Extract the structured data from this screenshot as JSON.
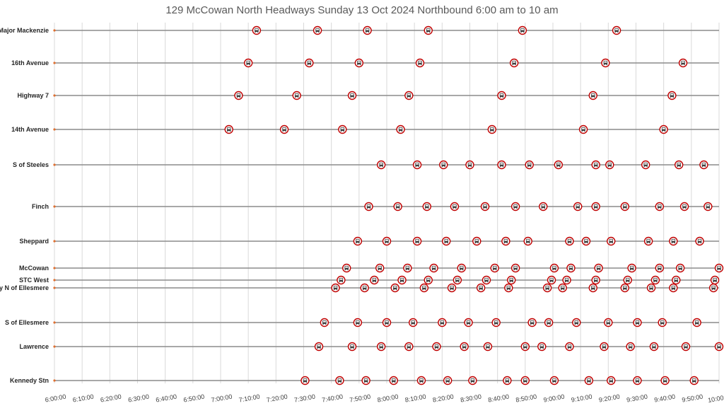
{
  "chart_data": {
    "type": "scatter",
    "title": "129 McCowan North Headways Sunday 13 Oct 2024 Northbound 6:00 am to 10 am",
    "x_range": [
      "6:00:00",
      "10:00:00"
    ],
    "x_ticks": [
      "6:00:00",
      "6:10:00",
      "6:20:00",
      "6:30:00",
      "6:40:00",
      "6:50:00",
      "7:00:00",
      "7:10:00",
      "7:20:00",
      "7:30:00",
      "7:40:00",
      "7:50:00",
      "8:00:00",
      "8:10:00",
      "8:20:00",
      "8:30:00",
      "8:40:00",
      "8:50:00",
      "9:00:00",
      "9:10:00",
      "9:20:00",
      "9:30:00",
      "9:40:00",
      "9:50:00",
      "10:00:00"
    ],
    "grid": "vertical",
    "colors": {
      "marker": "#c00000",
      "line": "#8c8c8c",
      "grid": "#d9d9d9",
      "title": "#595959",
      "stop_dot": "#e07030"
    },
    "marker_icon": "bus-icon",
    "stops": [
      {
        "name": "S of Major Mackenzie",
        "times": [
          "7:13:00",
          "7:35:00",
          "7:53:00",
          "8:15:00",
          "8:49:00",
          "9:23:00"
        ]
      },
      {
        "name": "16th Avenue",
        "times": [
          "7:10:00",
          "7:32:00",
          "7:50:00",
          "8:12:00",
          "8:46:00",
          "9:19:00",
          "9:47:00"
        ]
      },
      {
        "name": "Highway 7",
        "times": [
          "7:06:30",
          "7:27:30",
          "7:47:30",
          "8:08:00",
          "8:41:30",
          "9:14:30",
          "9:43:00"
        ]
      },
      {
        "name": "14th Avenue",
        "times": [
          "7:03:00",
          "7:23:00",
          "7:44:00",
          "8:05:00",
          "8:38:00",
          "9:11:00",
          "9:40:00"
        ]
      },
      {
        "name": "S of Steeles",
        "times": [
          "7:58:00",
          "8:11:00",
          "8:20:30",
          "8:30:00",
          "8:41:30",
          "8:51:30",
          "9:02:00",
          "9:15:30",
          "9:20:30",
          "9:33:30",
          "9:45:30",
          "9:54:30"
        ]
      },
      {
        "name": "Finch",
        "times": [
          "7:53:30",
          "8:04:00",
          "8:14:30",
          "8:24:30",
          "8:35:30",
          "8:46:30",
          "8:56:30",
          "9:09:00",
          "9:15:30",
          "9:26:00",
          "9:38:30",
          "9:47:30",
          "9:56:00"
        ]
      },
      {
        "name": "Sheppard",
        "times": [
          "7:49:30",
          "8:00:00",
          "8:11:00",
          "8:21:30",
          "8:32:30",
          "8:43:00",
          "8:51:00",
          "9:06:00",
          "9:12:00",
          "9:21:00",
          "9:34:30",
          "9:43:30",
          "9:53:00"
        ]
      },
      {
        "name": "McCowan",
        "times": [
          "7:45:30",
          "7:57:30",
          "8:07:30",
          "8:17:00",
          "8:27:00",
          "8:39:00",
          "8:46:30",
          "9:00:30",
          "9:06:30",
          "9:16:30",
          "9:28:30",
          "9:38:30",
          "9:46:00",
          "10:00:00"
        ]
      },
      {
        "name": "STC West",
        "times": [
          "7:43:30",
          "7:55:30",
          "8:05:30",
          "8:15:00",
          "8:25:30",
          "8:36:00",
          "8:45:00",
          "8:59:30",
          "9:05:00",
          "9:15:30",
          "9:27:00",
          "9:37:00",
          "9:44:30",
          "9:58:30"
        ]
      },
      {
        "name": "Brimley N of Ellesmere",
        "times": [
          "7:41:30",
          "7:52:00",
          "8:03:00",
          "8:13:30",
          "8:23:30",
          "8:34:00",
          "8:44:00",
          "8:58:00",
          "9:03:30",
          "9:14:30",
          "9:26:00",
          "9:35:30",
          "9:43:30",
          "9:58:00"
        ]
      },
      {
        "name": "S of Ellesmere",
        "times": [
          "7:37:30",
          "7:49:30",
          "8:00:00",
          "8:09:30",
          "8:20:00",
          "8:29:30",
          "8:39:30",
          "8:52:30",
          "8:58:30",
          "9:08:30",
          "9:20:00",
          "9:30:30",
          "9:39:30",
          "9:52:00"
        ]
      },
      {
        "name": "Lawrence",
        "times": [
          "7:35:30",
          "7:47:30",
          "7:58:00",
          "8:08:00",
          "8:18:00",
          "8:28:00",
          "8:36:30",
          "8:50:00",
          "8:56:00",
          "9:06:00",
          "9:18:30",
          "9:28:00",
          "9:36:30",
          "9:48:00",
          "10:00:00"
        ]
      },
      {
        "name": "Kennedy Stn",
        "times": [
          "7:30:30",
          "7:43:00",
          "7:52:30",
          "8:02:30",
          "8:12:30",
          "8:22:00",
          "8:31:00",
          "8:43:30",
          "8:50:00",
          "9:00:30",
          "9:13:00",
          "9:21:00",
          "9:30:30",
          "9:40:30",
          "9:51:00"
        ]
      }
    ]
  }
}
